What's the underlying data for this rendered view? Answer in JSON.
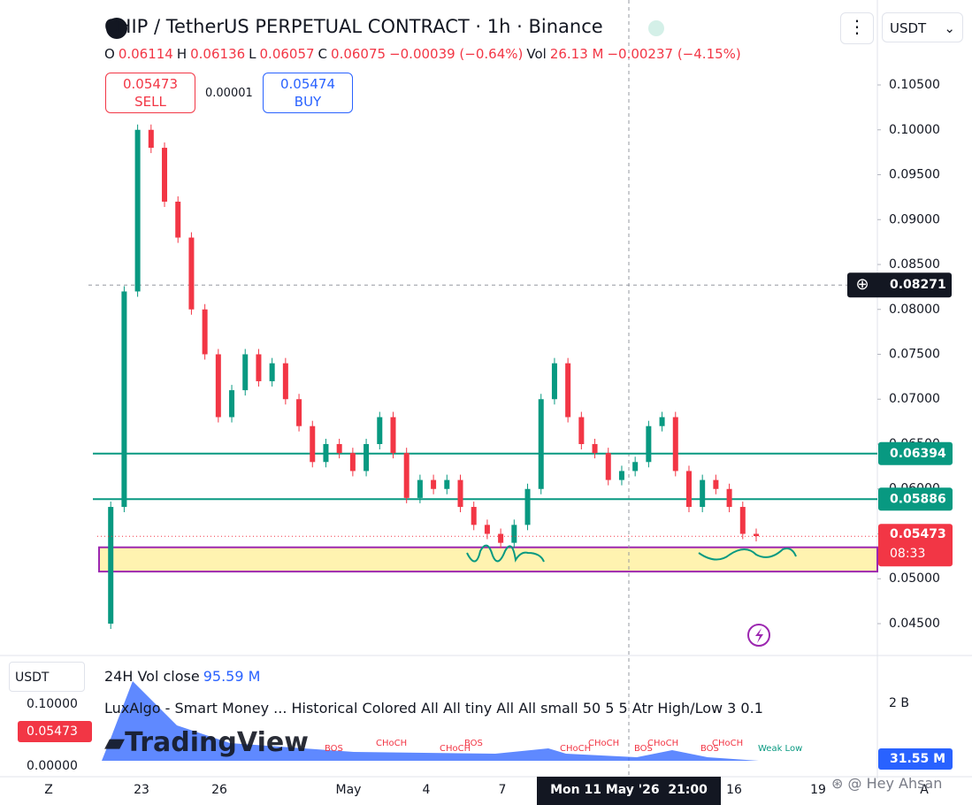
{
  "header": {
    "title": "CHIP / TetherUS PERPETUAL CONTRACT · 1h · Binance",
    "currency": "USDT",
    "ohlc": [
      {
        "key": "O",
        "value": "0.06114"
      },
      {
        "key": "H",
        "value": "0.06136"
      },
      {
        "key": "L",
        "value": "0.06057"
      },
      {
        "key": "C",
        "value": "0.06075"
      }
    ],
    "change": "−0.00039 (−0.64%)",
    "vol_key": "Vol",
    "vol_value": "26.13 M",
    "vol_change": "−0.00237 (−4.15%)",
    "sell_price": "0.05473",
    "sell_label": "SELL",
    "spread": "0.00001",
    "buy_price": "0.05474",
    "buy_label": "BUY"
  },
  "chart_data": {
    "type": "candlestick",
    "values": [
      0.045,
      0.058,
      0.082,
      0.1,
      0.098,
      0.092,
      0.088,
      0.08,
      0.075,
      0.068,
      0.071,
      0.075,
      0.072,
      0.074,
      0.07,
      0.067,
      0.063,
      0.065,
      0.064,
      0.062,
      0.065,
      0.068,
      0.064,
      0.059,
      0.061,
      0.06,
      0.061,
      0.058,
      0.056,
      0.055,
      0.054,
      0.056,
      0.06,
      0.07,
      0.074,
      0.068,
      0.065,
      0.064,
      0.061,
      0.062,
      0.063,
      0.067,
      0.068,
      0.062,
      0.058,
      0.061,
      0.06,
      0.058,
      0.055,
      0.05475
    ],
    "up_color": "#089981",
    "down_color": "#f23645",
    "ylim": [
      0.04155,
      0.11446
    ],
    "yticks": [
      {
        "value": 0.045,
        "label": "0.04500"
      },
      {
        "value": 0.05,
        "label": "0.05000"
      },
      {
        "value": 0.055,
        "label": "0.05500"
      },
      {
        "value": 0.06,
        "label": "0.06000"
      },
      {
        "value": 0.065,
        "label": "0.06500"
      },
      {
        "value": 0.07,
        "label": "0.07000"
      },
      {
        "value": 0.075,
        "label": "0.07500"
      },
      {
        "value": 0.08,
        "label": "0.08000"
      },
      {
        "value": 0.085,
        "label": "0.08500"
      },
      {
        "value": 0.09,
        "label": "0.09000"
      },
      {
        "value": 0.095,
        "label": "0.09500"
      },
      {
        "value": 0.1,
        "label": "0.10000"
      },
      {
        "value": 0.105,
        "label": "0.10500"
      }
    ],
    "levels": [
      0.06394,
      0.05886
    ],
    "level_color": "#089981",
    "zone": [
      0.0508,
      0.0535
    ],
    "zone_color": "#fff3b0",
    "zone_border": "#9c27b0",
    "current_price": 0.05473,
    "countdown": "08:33",
    "crosshair_price": 0.08271,
    "xticks": [
      "Z",
      "23",
      "26",
      "May",
      "4",
      "7",
      "Mon 11 May '26  21:00",
      "16",
      "19",
      "A"
    ]
  },
  "lower_panel": {
    "currency": "USDT",
    "vol_title": "24H Vol close",
    "vol_value": "95.59 M",
    "indicator": "LuxAlgo - Smart Money ... Historical Colored All All tiny All All small 50 5 5 Atr High/Low 3 0.1",
    "left_ticks": [
      "0.10000",
      "0.05473",
      "0.00000"
    ],
    "right_ticks": [
      "2 B",
      "31.55 M"
    ],
    "smc_labels": [
      "BOS",
      "CHoCH",
      "CHoCH",
      "BOS",
      "CHoCH",
      "CHoCH",
      "BOS",
      "CHoCH",
      "BOS",
      "CHoCH",
      "Weak Low"
    ],
    "logo": "TradingView"
  },
  "watermark": "Hey Ahsan"
}
